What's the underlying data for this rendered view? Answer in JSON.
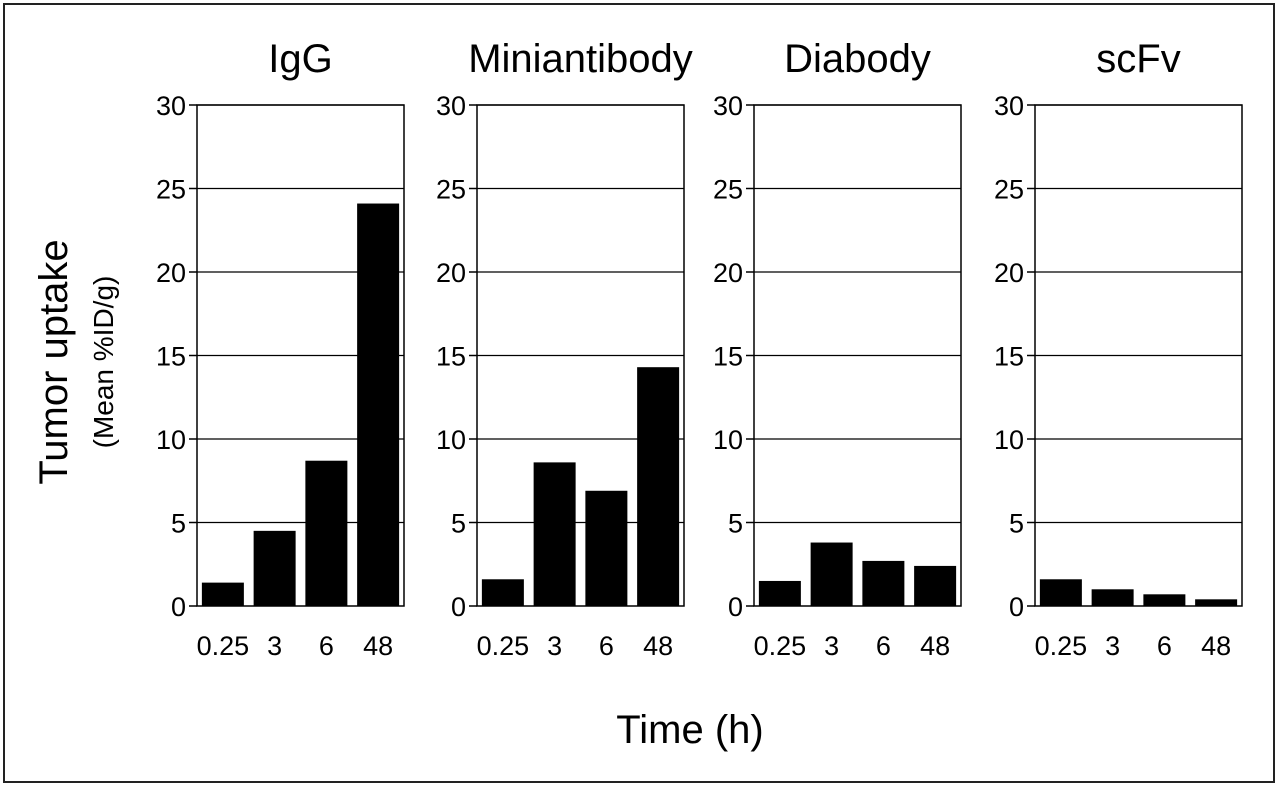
{
  "chart_data": {
    "type": "bar",
    "ylabel": "Tumor uptake",
    "ylabel_sub": "(Mean %ID/g)",
    "xlabel": "Time (h)",
    "categories": [
      "0.25",
      "3",
      "6",
      "48"
    ],
    "ylim": [
      0,
      30
    ],
    "yticks": [
      0,
      5,
      10,
      15,
      20,
      25,
      30
    ],
    "grid": "horizontal",
    "bar_color": "#000000",
    "panels": [
      {
        "title": "IgG",
        "values": [
          1.4,
          4.5,
          8.7,
          24.1
        ]
      },
      {
        "title": "Miniantibody",
        "values": [
          1.6,
          8.6,
          6.9,
          14.3
        ]
      },
      {
        "title": "Diabody",
        "values": [
          1.5,
          3.8,
          2.7,
          2.4
        ]
      },
      {
        "title": "scFv",
        "values": [
          1.6,
          1.0,
          0.7,
          0.4
        ]
      }
    ]
  }
}
